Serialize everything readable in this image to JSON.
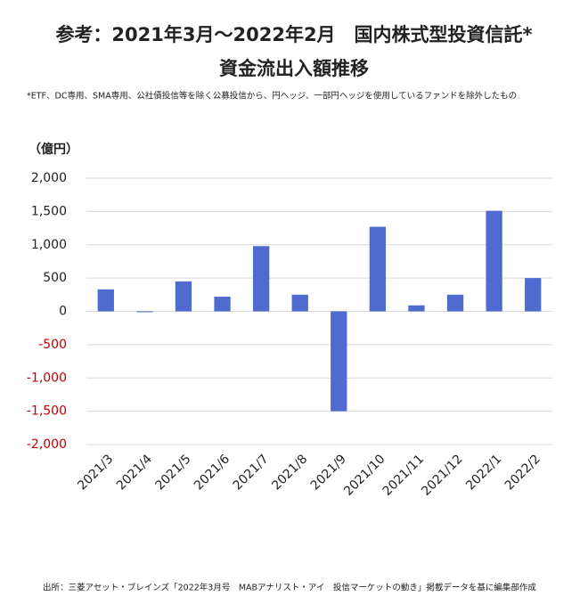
{
  "chart_data": {
    "type": "bar",
    "title": "参考：2021年3月～2022年2月　国内株式型投資信託*",
    "subtitle": "資金流出入額推移",
    "note": "*ETF、DC専用、SMA専用、公社債投信等を除く公募投信から、円ヘッジ、一部円ヘッジを使用しているファンドを除外したもの",
    "y_label": "（億円）",
    "source": "出所：三菱アセット・ブレインズ「2022年3月号　MABアナリスト・アイ　投信マーケットの動き」掲載データを基に編集部作成",
    "categories": [
      "2021/3",
      "2021/4",
      "2021/5",
      "2021/6",
      "2021/7",
      "2021/8",
      "2021/9",
      "2021/10",
      "2021/11",
      "2021/12",
      "2022/1",
      "2022/2"
    ],
    "values": [
      330,
      -10,
      450,
      220,
      980,
      250,
      -1500,
      1270,
      90,
      250,
      1510,
      500
    ],
    "color": "#4f6bd0",
    "negative_tick_color": "#c00000",
    "ylim": [
      -2000,
      2000
    ],
    "yticks": [
      {
        "value": -2000,
        "label": "-2,000"
      },
      {
        "value": -1500,
        "label": "-1,500"
      },
      {
        "value": -1000,
        "label": "-1,000"
      },
      -500,
      0,
      500,
      {
        "value": 1000,
        "label": "1,000"
      },
      {
        "value": 1500,
        "label": "1,500"
      },
      {
        "value": 2000,
        "label": "2,000"
      }
    ],
    "grid": true
  }
}
